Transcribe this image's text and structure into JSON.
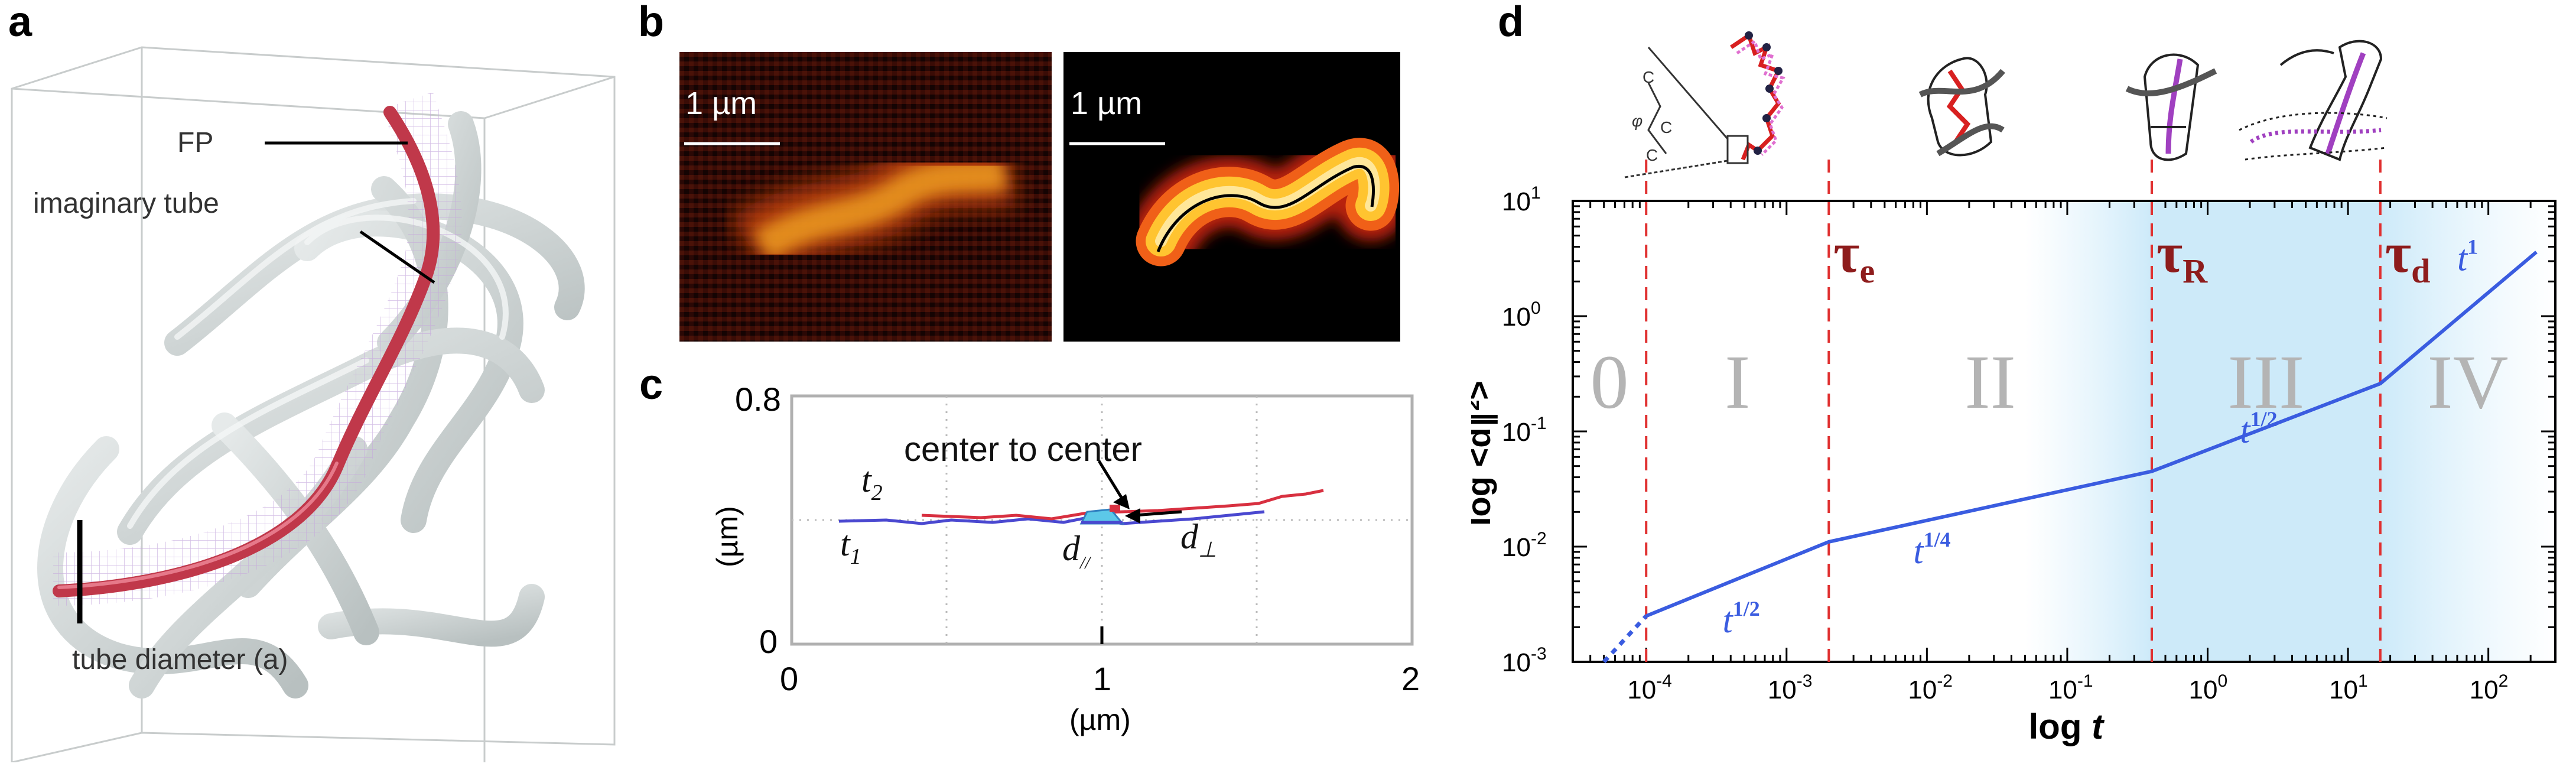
{
  "panel_a": {
    "letter": "a",
    "labels": {
      "fp": "FP",
      "tube": "imaginary tube",
      "diameter": "tube diameter (a)"
    }
  },
  "panel_b": {
    "letter": "b",
    "scale_left": "1 µm",
    "scale_right": "1 µm"
  },
  "panel_c": {
    "letter": "c",
    "ylabel": "(µm)",
    "xlabel": "(µm)",
    "yticks": [
      "0.8",
      "0"
    ],
    "xticks": [
      "0",
      "1",
      "2"
    ],
    "annotations": {
      "center": "center to center",
      "t2": "t",
      "t2_sub": "2",
      "t1": "t",
      "t1_sub": "1",
      "dpar": "d",
      "dpar_sub": "//",
      "dperp": "d",
      "dperp_sub": "⊥"
    },
    "colors": {
      "t1": "#4040d0",
      "t2": "#d03040"
    }
  },
  "panel_d": {
    "letter": "d",
    "chart_data": {
      "type": "line",
      "xlabel": "log t",
      "ylabel": "log <d∥²>",
      "xscale": "log",
      "yscale": "log",
      "xlim": [
        3e-05,
        300
      ],
      "ylim": [
        0.001,
        10
      ],
      "xticks": [
        "10-4",
        "10-3",
        "10-2",
        "10-1",
        "100",
        "101",
        "102"
      ],
      "yticks": [
        "10-3",
        "10-2",
        "10-1",
        "100",
        "101"
      ],
      "series": [
        {
          "values": [
            [
              0.0001,
              0.0025
            ],
            [
              0.002,
              0.011
            ],
            [
              0.4,
              0.045
            ],
            [
              17,
              0.26
            ],
            [
              220,
              3.6
            ]
          ],
          "color": "#3a5ce0"
        }
      ],
      "extrapolation": [
        [
          5e-05,
          0.001
        ],
        [
          0.0001,
          0.0025
        ]
      ],
      "vlines": [
        {
          "x": 0.0001,
          "label": ""
        },
        {
          "x": 0.002,
          "label": "τ",
          "sub": "e"
        },
        {
          "x": 0.4,
          "label": "τ",
          "sub": "R"
        },
        {
          "x": 17,
          "label": "τ",
          "sub": "d"
        }
      ],
      "regimes": [
        "0",
        "I",
        "II",
        "III",
        "IV"
      ],
      "slope_labels": [
        {
          "base": "t",
          "exp": "1/2"
        },
        {
          "base": "t",
          "exp": "1/4"
        },
        {
          "base": "t",
          "exp": "1/2"
        },
        {
          "base": "t",
          "exp": "1"
        }
      ]
    },
    "schematic_labels": {
      "c1": "C",
      "c2": "C",
      "c3": "C",
      "phi": "φ"
    }
  }
}
